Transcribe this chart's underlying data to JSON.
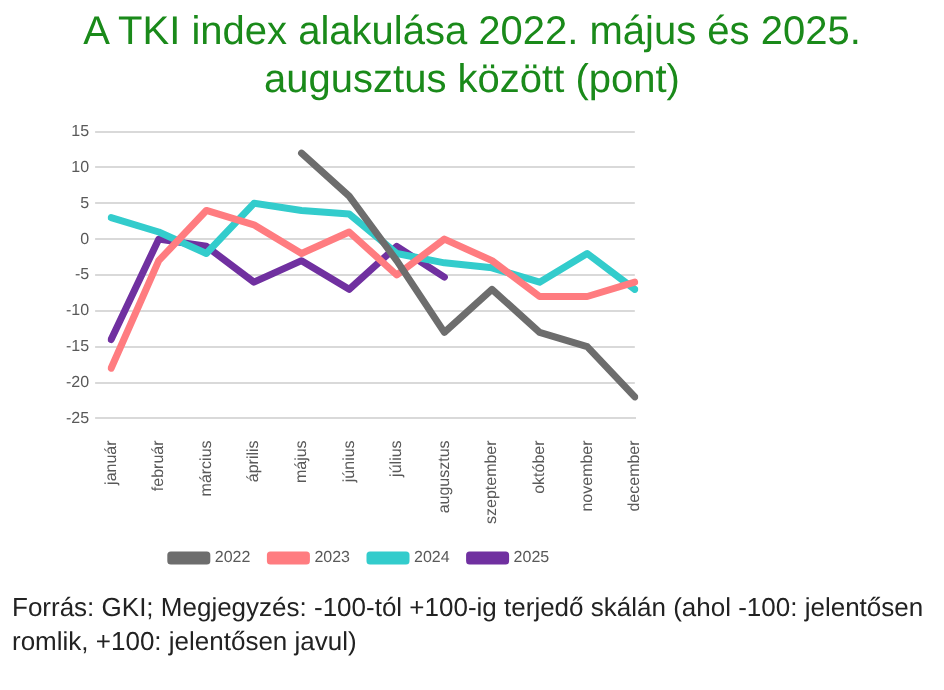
{
  "chart_data": {
    "type": "line",
    "title": "A TKI index alakulása 2022. május és 2025. augusztus között (pont)",
    "categories": [
      "január",
      "február",
      "március",
      "április",
      "május",
      "június",
      "július",
      "augusztus",
      "szeptember",
      "október",
      "november",
      "december"
    ],
    "series": [
      {
        "name": "2022",
        "color": "#6d6d6d",
        "values": [
          null,
          null,
          null,
          null,
          12,
          6,
          -3,
          -13,
          -7,
          -13,
          -15,
          -22
        ]
      },
      {
        "name": "2023",
        "color": "#ff7c80",
        "values": [
          -18,
          -3,
          4,
          2,
          -2,
          1,
          -5,
          0,
          -3,
          -8,
          -8,
          -6
        ]
      },
      {
        "name": "2024",
        "color": "#33cccc",
        "values": [
          3,
          1,
          -2,
          5,
          4,
          3.5,
          -2,
          -3.3,
          -4,
          -6,
          -2,
          -7
        ]
      },
      {
        "name": "2025",
        "color": "#7030a0",
        "values": [
          -14,
          0,
          -1,
          -6,
          -3,
          -7,
          -1,
          -5.3,
          null,
          null,
          null,
          null
        ]
      }
    ],
    "ylim": [
      -25,
      15
    ],
    "yticks": [
      -25,
      -20,
      -15,
      -10,
      -5,
      0,
      5,
      10,
      15
    ],
    "grid": "y",
    "legend": "bottom",
    "marker": "none",
    "annotations": [
      "Forrás: GKI; Megjegyzés: -100-tól +100-ig terjedő skálán (ahol -100: jelentősen romlik, +100: jelentősen javul)"
    ]
  }
}
